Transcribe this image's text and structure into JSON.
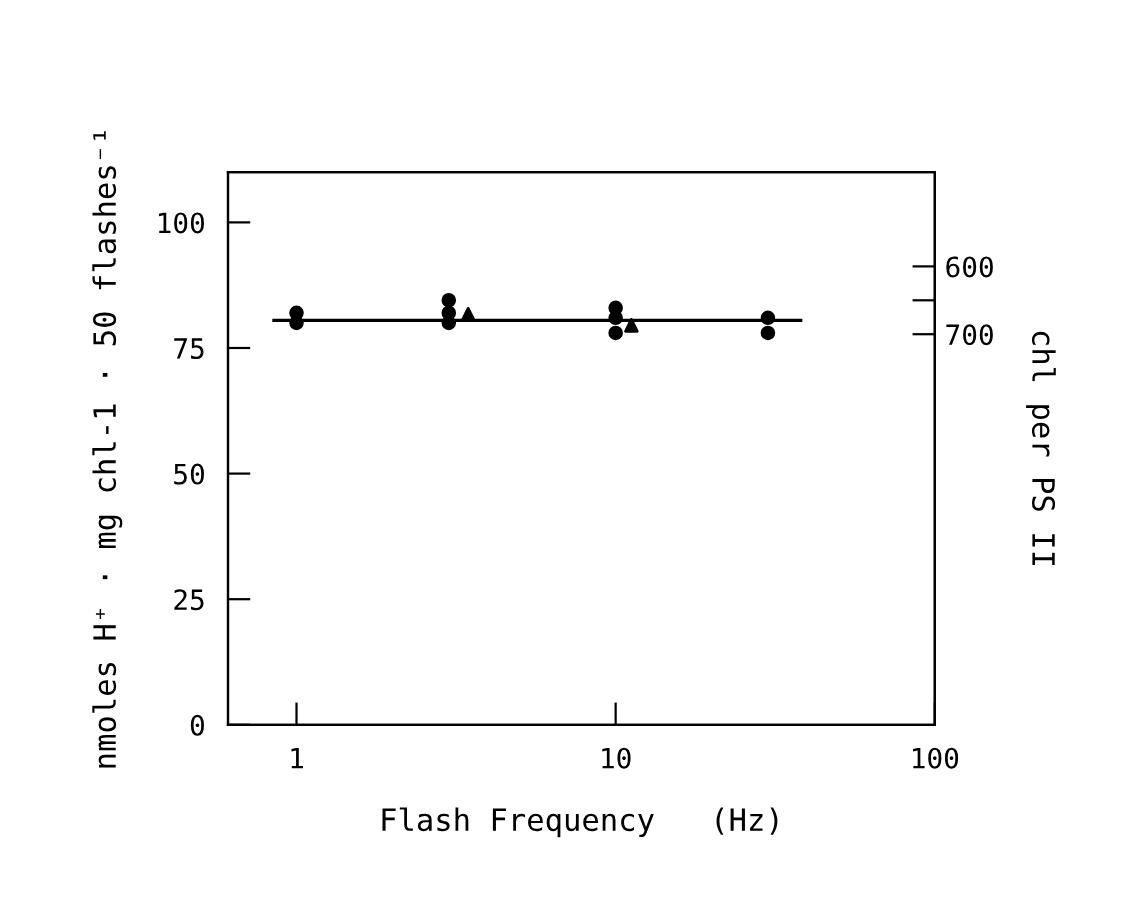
{
  "chart_data": {
    "type": "scatter",
    "xlabel": "Flash Frequency   (Hz)",
    "ylabel": "nmoles H⁺ · mg chl-1 · 50 flashes⁻¹",
    "y2label": "chl per PS II",
    "log": "x",
    "xlim": [
      0.61,
      100
    ],
    "xticks": [
      1,
      10,
      100
    ],
    "ylim": [
      0,
      110
    ],
    "yticks": [
      0,
      25,
      50,
      75,
      100
    ],
    "y2lim": [
      1276,
      461
    ],
    "y2ticks": [
      600,
      {
        "value": 650,
        "label": null
      },
      700
    ],
    "grid": false,
    "legend": false,
    "series": [
      {
        "type": "line",
        "color": "#000000",
        "marker": "none",
        "line_style": "solid",
        "x": [
          0.85,
          38
        ],
        "values": [
          80.5,
          80.5
        ]
      },
      {
        "color": "#000000",
        "marker": "circle",
        "x": [
          1,
          1,
          3,
          3,
          3,
          10,
          10,
          10,
          30,
          30
        ],
        "values": [
          82,
          80,
          84.5,
          82,
          80,
          83,
          81,
          78,
          81,
          78
        ]
      },
      {
        "color": "#000000",
        "marker": "triangle",
        "x": [
          3.45,
          11.2
        ],
        "values": [
          81.7,
          79.5
        ]
      }
    ]
  }
}
